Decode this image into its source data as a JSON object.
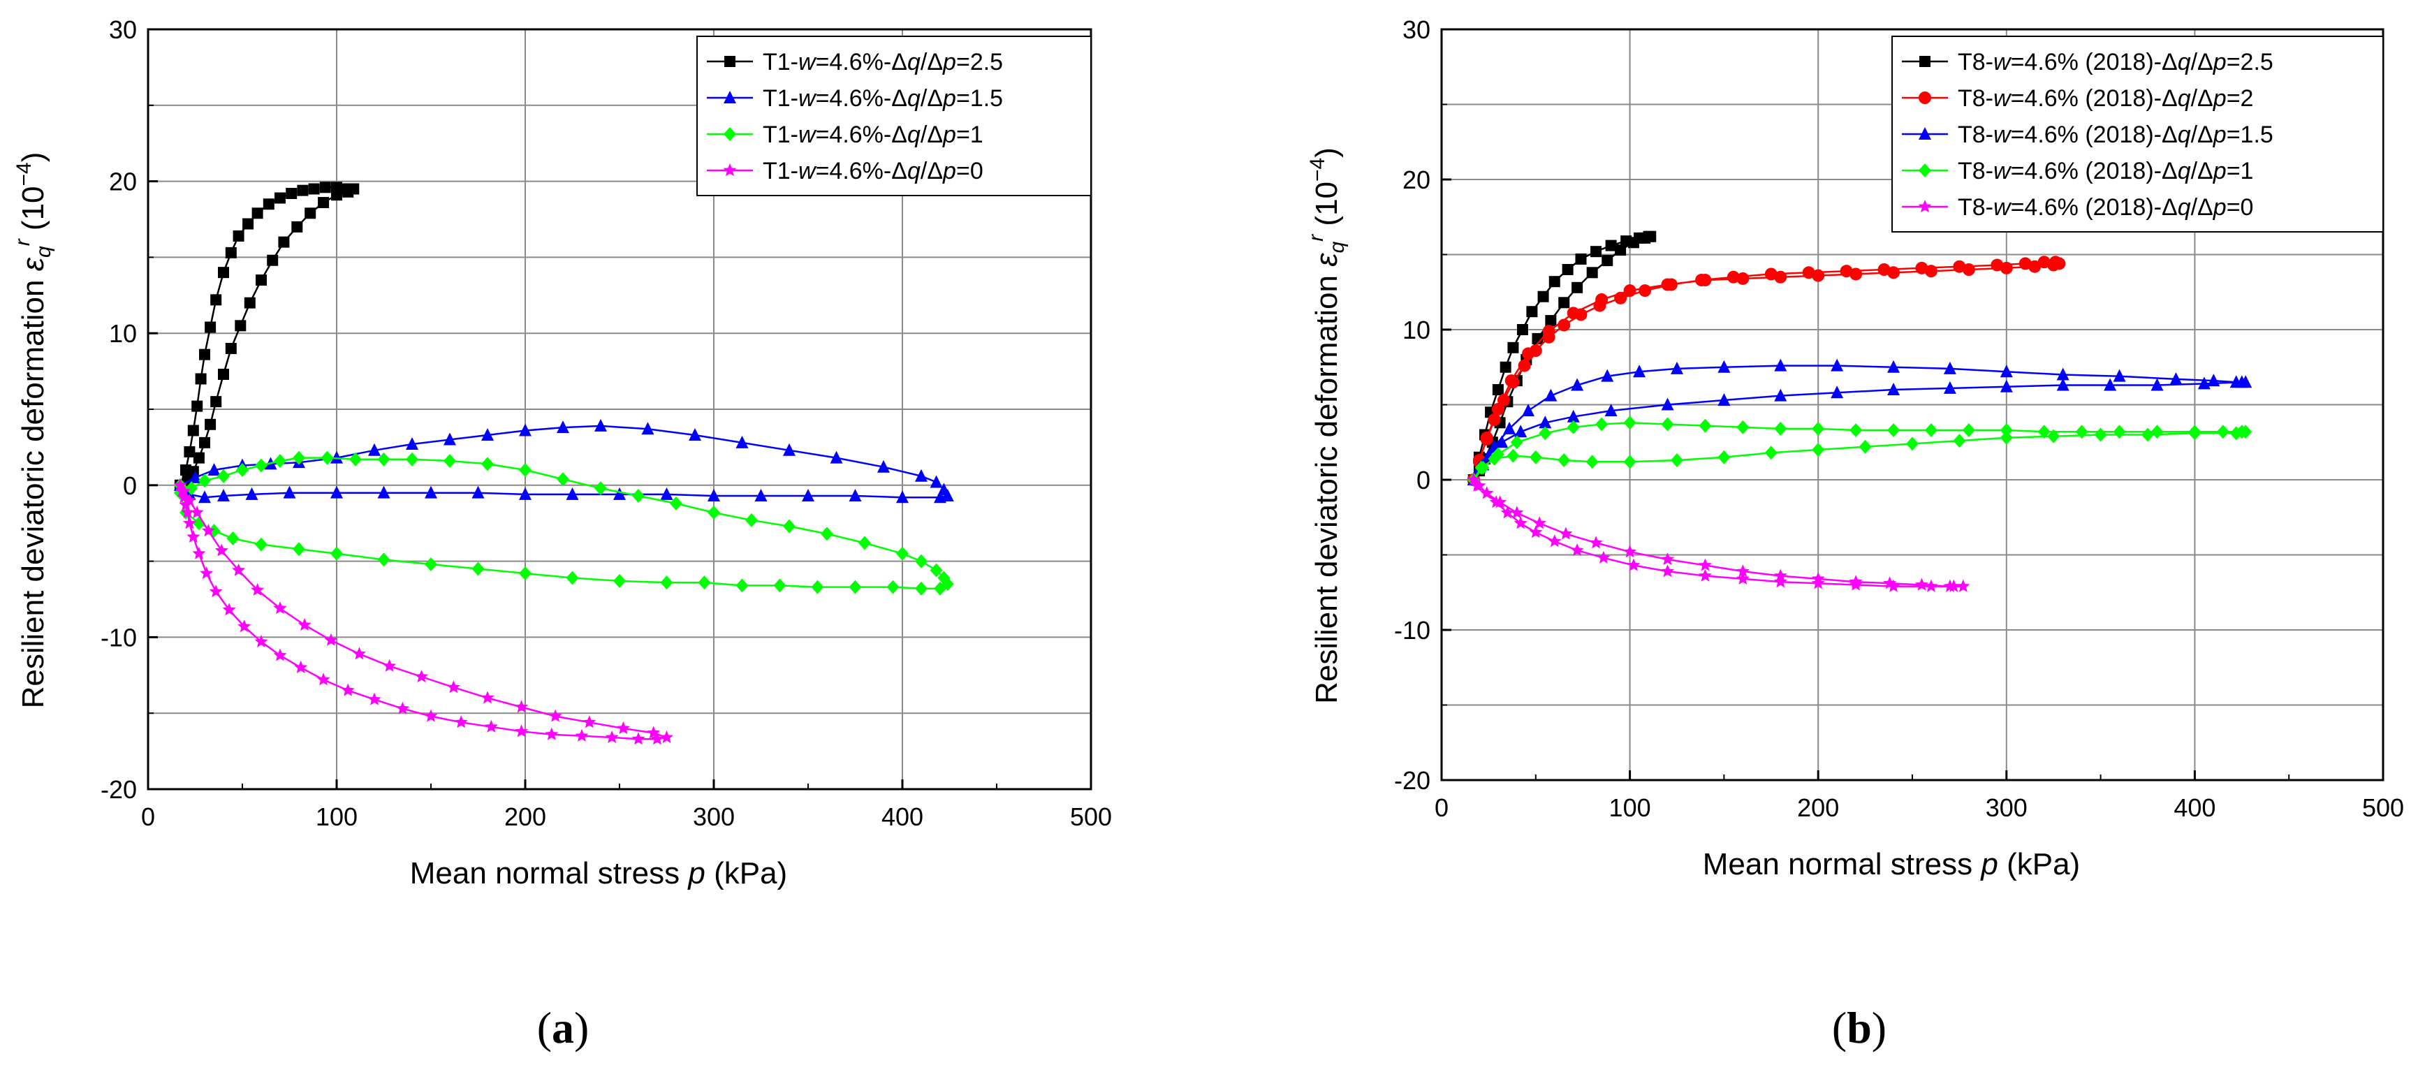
{
  "chart_data": [
    {
      "panel_label": "(a)",
      "type": "line",
      "xlabel": "Mean normal stress p (kPa)",
      "ylabel": "Resilient deviatoric deformation εqr (10−4)",
      "xlim": [
        0,
        500
      ],
      "ylim": [
        -20,
        30
      ],
      "xticks": [
        0,
        100,
        200,
        300,
        400,
        500
      ],
      "yticks": [
        -20,
        -10,
        0,
        10,
        20,
        30
      ],
      "grid": true,
      "legend_position": "top-right",
      "series": [
        {
          "name": "T1-w=4.6%-Δq/Δp=2.5",
          "label_prefix": "T1-",
          "label_w": "w",
          "label_mid": "=4.6%-Δ",
          "label_q": "q",
          "label_div": "/Δ",
          "label_p": "p",
          "label_val": "=2.5",
          "color": "#000000",
          "marker": "square",
          "x": [
            17,
            20,
            22,
            24,
            26,
            28,
            30,
            33,
            36,
            40,
            44,
            48,
            53,
            58,
            64,
            70,
            76,
            82,
            88,
            94,
            100,
            105,
            109,
            106,
            100,
            93,
            86,
            79,
            72,
            66,
            60,
            54,
            49,
            44,
            40,
            36,
            33,
            30,
            27,
            24,
            21,
            18
          ],
          "y": [
            0,
            1,
            2.2,
            3.6,
            5.2,
            7,
            8.6,
            10.4,
            12.2,
            14,
            15.3,
            16.4,
            17.2,
            17.9,
            18.5,
            18.9,
            19.2,
            19.4,
            19.5,
            19.6,
            19.6,
            19.5,
            19.5,
            19.3,
            19.1,
            18.6,
            17.9,
            17,
            16,
            14.8,
            13.5,
            12,
            10.5,
            9,
            7.3,
            5.5,
            4,
            2.8,
            1.8,
            0.9,
            0.3,
            0
          ]
        },
        {
          "name": "T1-w=4.6%-Δq/Δp=1.5",
          "label_prefix": "T1-",
          "label_w": "w",
          "label_mid": "=4.6%-Δ",
          "label_q": "q",
          "label_div": "/Δ",
          "label_p": "p",
          "label_val": "=1.5",
          "color": "#0000ff",
          "marker": "triangle",
          "x": [
            17,
            25,
            35,
            50,
            65,
            80,
            100,
            120,
            140,
            160,
            180,
            200,
            220,
            240,
            265,
            290,
            315,
            340,
            365,
            390,
            410,
            418,
            422,
            424,
            420,
            400,
            375,
            350,
            325,
            300,
            275,
            250,
            225,
            200,
            175,
            150,
            125,
            100,
            75,
            55,
            40,
            30,
            22,
            17
          ],
          "y": [
            0,
            0.5,
            1.0,
            1.3,
            1.4,
            1.5,
            1.8,
            2.3,
            2.7,
            3.0,
            3.3,
            3.6,
            3.8,
            3.9,
            3.7,
            3.3,
            2.8,
            2.3,
            1.8,
            1.2,
            0.6,
            0.2,
            -0.3,
            -0.7,
            -0.8,
            -0.8,
            -0.7,
            -0.7,
            -0.7,
            -0.7,
            -0.6,
            -0.6,
            -0.6,
            -0.6,
            -0.5,
            -0.5,
            -0.5,
            -0.5,
            -0.5,
            -0.6,
            -0.7,
            -0.8,
            -0.6,
            0
          ]
        },
        {
          "name": "T1-w=4.6%-Δq/Δp=1",
          "label_prefix": "T1-",
          "label_w": "w",
          "label_mid": "=4.6%-Δ",
          "label_q": "q",
          "label_div": "/Δ",
          "label_p": "p",
          "label_val": "=1",
          "color": "#00ff00",
          "marker": "diamond",
          "x": [
            17,
            23,
            30,
            40,
            50,
            60,
            70,
            80,
            95,
            110,
            125,
            140,
            160,
            180,
            200,
            220,
            240,
            260,
            280,
            300,
            320,
            340,
            360,
            380,
            400,
            410,
            418,
            422,
            424,
            420,
            410,
            395,
            375,
            355,
            335,
            315,
            295,
            275,
            250,
            225,
            200,
            175,
            150,
            125,
            100,
            80,
            60,
            45,
            35,
            27,
            20,
            17
          ],
          "y": [
            0,
            -0.2,
            0.3,
            0.6,
            1.0,
            1.3,
            1.6,
            1.8,
            1.8,
            1.7,
            1.7,
            1.7,
            1.6,
            1.4,
            1.0,
            0.4,
            -0.2,
            -0.7,
            -1.2,
            -1.8,
            -2.3,
            -2.7,
            -3.2,
            -3.8,
            -4.5,
            -5.0,
            -5.6,
            -6.1,
            -6.5,
            -6.8,
            -6.8,
            -6.7,
            -6.7,
            -6.7,
            -6.6,
            -6.6,
            -6.4,
            -6.4,
            -6.3,
            -6.1,
            -5.8,
            -5.5,
            -5.2,
            -4.9,
            -4.5,
            -4.2,
            -3.9,
            -3.5,
            -3.0,
            -2.5,
            -1.8,
            -0.5
          ]
        },
        {
          "name": "T1-w=4.6%-Δq/Δp=0",
          "label_prefix": "T1-",
          "label_w": "w",
          "label_mid": "=4.6%-Δ",
          "label_q": "q",
          "label_div": "/Δ",
          "label_p": "p",
          "label_val": "=0",
          "color": "#ff00ff",
          "marker": "star",
          "x": [
            17,
            18,
            19,
            20,
            21,
            22,
            24,
            27,
            31,
            36,
            43,
            51,
            60,
            70,
            81,
            93,
            106,
            120,
            135,
            150,
            166,
            182,
            198,
            214,
            230,
            246,
            260,
            270,
            275,
            268,
            252,
            234,
            216,
            198,
            180,
            162,
            145,
            128,
            112,
            97,
            83,
            70,
            58,
            48,
            39,
            32,
            26,
            22,
            19,
            17
          ],
          "y": [
            0,
            -0.4,
            -0.8,
            -1.3,
            -1.8,
            -2.5,
            -3.4,
            -4.5,
            -5.8,
            -7.0,
            -8.2,
            -9.3,
            -10.3,
            -11.2,
            -12.0,
            -12.8,
            -13.5,
            -14.1,
            -14.7,
            -15.2,
            -15.6,
            -15.9,
            -16.2,
            -16.4,
            -16.5,
            -16.6,
            -16.7,
            -16.7,
            -16.6,
            -16.3,
            -16.0,
            -15.6,
            -15.2,
            -14.6,
            -14.0,
            -13.3,
            -12.6,
            -11.9,
            -11.1,
            -10.2,
            -9.2,
            -8.1,
            -6.9,
            -5.6,
            -4.3,
            -3.0,
            -1.8,
            -1.0,
            -0.4,
            0
          ]
        }
      ]
    },
    {
      "panel_label": "(b)",
      "type": "line",
      "xlabel": "Mean normal stress p (kPa)",
      "ylabel": "Resilient deviatoric deformation εqr (10−4)",
      "xlim": [
        0,
        500
      ],
      "ylim": [
        -20,
        30
      ],
      "xticks": [
        0,
        100,
        200,
        300,
        400,
        500
      ],
      "yticks": [
        -20,
        -10,
        0,
        10,
        20,
        30
      ],
      "grid": true,
      "legend_position": "top-right",
      "series": [
        {
          "name": "T8-w=4.6% (2018)-Δq/Δp=2.5",
          "label_prefix": "T8-",
          "label_w": "w",
          "label_mid": "=4.6% (2018)-Δ",
          "label_q": "q",
          "label_div": "/Δ",
          "label_p": "p",
          "label_val": "=2.5",
          "color": "#000000",
          "marker": "square",
          "x": [
            17,
            20,
            23,
            26,
            30,
            34,
            38,
            43,
            48,
            54,
            60,
            67,
            74,
            82,
            90,
            98,
            105,
            110,
            111,
            108,
            102,
            95,
            88,
            80,
            72,
            65,
            58,
            51,
            45,
            40,
            35,
            31,
            27,
            23,
            20,
            17
          ],
          "y": [
            0,
            1.5,
            3.0,
            4.5,
            6.0,
            7.5,
            8.8,
            10.0,
            11.2,
            12.2,
            13.2,
            14.0,
            14.7,
            15.2,
            15.6,
            15.9,
            16.1,
            16.2,
            16.2,
            16.1,
            15.8,
            15.3,
            14.6,
            13.8,
            12.8,
            11.8,
            10.6,
            9.4,
            8.0,
            6.6,
            5.2,
            3.8,
            2.5,
            1.4,
            0.6,
            0
          ]
        },
        {
          "name": "T8-w=4.6% (2018)-Δq/Δp=2",
          "label_prefix": "T8-",
          "label_w": "w",
          "label_mid": "=4.6% (2018)-Δ",
          "label_q": "q",
          "label_div": "/Δ",
          "label_p": "p",
          "label_val": "=2",
          "color": "#ff0000",
          "marker": "circle",
          "x": [
            17,
            20,
            24,
            28,
            33,
            38,
            44,
            50,
            57,
            65,
            74,
            84,
            95,
            108,
            122,
            138,
            155,
            175,
            195,
            215,
            235,
            255,
            275,
            295,
            310,
            320,
            326,
            328,
            325,
            315,
            300,
            280,
            260,
            240,
            220,
            200,
            180,
            160,
            140,
            120,
            100,
            85,
            70,
            57,
            46,
            37,
            30,
            24,
            20,
            17
          ],
          "y": [
            0,
            1.3,
            2.7,
            4.0,
            5.3,
            6.5,
            7.6,
            8.6,
            9.5,
            10.3,
            11.0,
            11.6,
            12.1,
            12.6,
            13.0,
            13.3,
            13.5,
            13.7,
            13.8,
            13.9,
            14.0,
            14.1,
            14.2,
            14.3,
            14.4,
            14.5,
            14.5,
            14.4,
            14.3,
            14.2,
            14.1,
            14.0,
            13.9,
            13.8,
            13.7,
            13.6,
            13.5,
            13.4,
            13.3,
            13.0,
            12.6,
            12.0,
            11.1,
            9.9,
            8.4,
            6.6,
            4.7,
            2.8,
            1.2,
            0
          ]
        },
        {
          "name": "T8-w=4.6% (2018)-Δq/Δp=1.5",
          "label_prefix": "T8-",
          "label_w": "w",
          "label_mid": "=4.6% (2018)-Δ",
          "label_q": "q",
          "label_div": "/Δ",
          "label_p": "p",
          "label_val": "=1.5",
          "color": "#0000ff",
          "marker": "triangle",
          "x": [
            17,
            22,
            28,
            36,
            46,
            58,
            72,
            88,
            105,
            125,
            150,
            180,
            210,
            240,
            270,
            300,
            330,
            360,
            390,
            410,
            422,
            427,
            425,
            405,
            380,
            355,
            330,
            300,
            270,
            240,
            210,
            180,
            150,
            120,
            90,
            70,
            55,
            42,
            32,
            25,
            20,
            17
          ],
          "y": [
            0,
            1.0,
            2.2,
            3.4,
            4.6,
            5.6,
            6.3,
            6.9,
            7.2,
            7.4,
            7.5,
            7.6,
            7.6,
            7.5,
            7.4,
            7.2,
            7.0,
            6.9,
            6.7,
            6.6,
            6.5,
            6.5,
            6.5,
            6.4,
            6.3,
            6.3,
            6.3,
            6.2,
            6.1,
            6.0,
            5.8,
            5.6,
            5.3,
            5.0,
            4.6,
            4.2,
            3.8,
            3.2,
            2.5,
            1.6,
            0.8,
            0
          ]
        },
        {
          "name": "T8-w=4.6% (2018)-Δq/Δp=1",
          "label_prefix": "T8-",
          "label_w": "w",
          "label_mid": "=4.6% (2018)-Δ",
          "label_q": "q",
          "label_div": "/Δ",
          "label_p": "p",
          "label_val": "=1",
          "color": "#00ff00",
          "marker": "diamond",
          "x": [
            17,
            22,
            30,
            40,
            55,
            70,
            85,
            100,
            120,
            140,
            160,
            180,
            200,
            220,
            240,
            260,
            280,
            300,
            320,
            340,
            360,
            380,
            400,
            415,
            425,
            427,
            422,
            400,
            375,
            350,
            325,
            300,
            275,
            250,
            225,
            200,
            175,
            150,
            125,
            100,
            80,
            65,
            50,
            38,
            28,
            21,
            17
          ],
          "y": [
            0,
            0.8,
            1.7,
            2.5,
            3.1,
            3.5,
            3.7,
            3.8,
            3.7,
            3.6,
            3.5,
            3.4,
            3.4,
            3.3,
            3.3,
            3.3,
            3.3,
            3.3,
            3.2,
            3.2,
            3.2,
            3.2,
            3.2,
            3.2,
            3.2,
            3.2,
            3.1,
            3.1,
            3.0,
            3.0,
            2.9,
            2.8,
            2.6,
            2.4,
            2.2,
            2.0,
            1.8,
            1.5,
            1.3,
            1.2,
            1.2,
            1.3,
            1.5,
            1.6,
            1.4,
            0.8,
            0
          ]
        },
        {
          "name": "T8-w=4.6% (2018)-Δq/Δp=0",
          "label_prefix": "T8-",
          "label_w": "w",
          "label_mid": "=4.6% (2018)-Δ",
          "label_q": "q",
          "label_div": "/Δ",
          "label_p": "p",
          "label_val": "=0",
          "color": "#ff00ff",
          "marker": "star",
          "x": [
            17,
            20,
            24,
            29,
            35,
            42,
            50,
            60,
            72,
            86,
            102,
            120,
            140,
            160,
            180,
            200,
            220,
            240,
            260,
            272,
            277,
            270,
            255,
            238,
            220,
            200,
            180,
            160,
            140,
            120,
            100,
            82,
            66,
            52,
            40,
            31,
            24,
            19,
            17
          ],
          "y": [
            0,
            -0.4,
            -0.9,
            -1.5,
            -2.2,
            -2.9,
            -3.5,
            -4.1,
            -4.7,
            -5.2,
            -5.7,
            -6.1,
            -6.4,
            -6.6,
            -6.8,
            -6.9,
            -7.0,
            -7.1,
            -7.1,
            -7.1,
            -7.1,
            -7.1,
            -7.0,
            -6.9,
            -6.8,
            -6.6,
            -6.4,
            -6.1,
            -5.7,
            -5.3,
            -4.8,
            -4.2,
            -3.6,
            -2.9,
            -2.2,
            -1.5,
            -0.9,
            -0.4,
            0
          ]
        }
      ]
    }
  ]
}
